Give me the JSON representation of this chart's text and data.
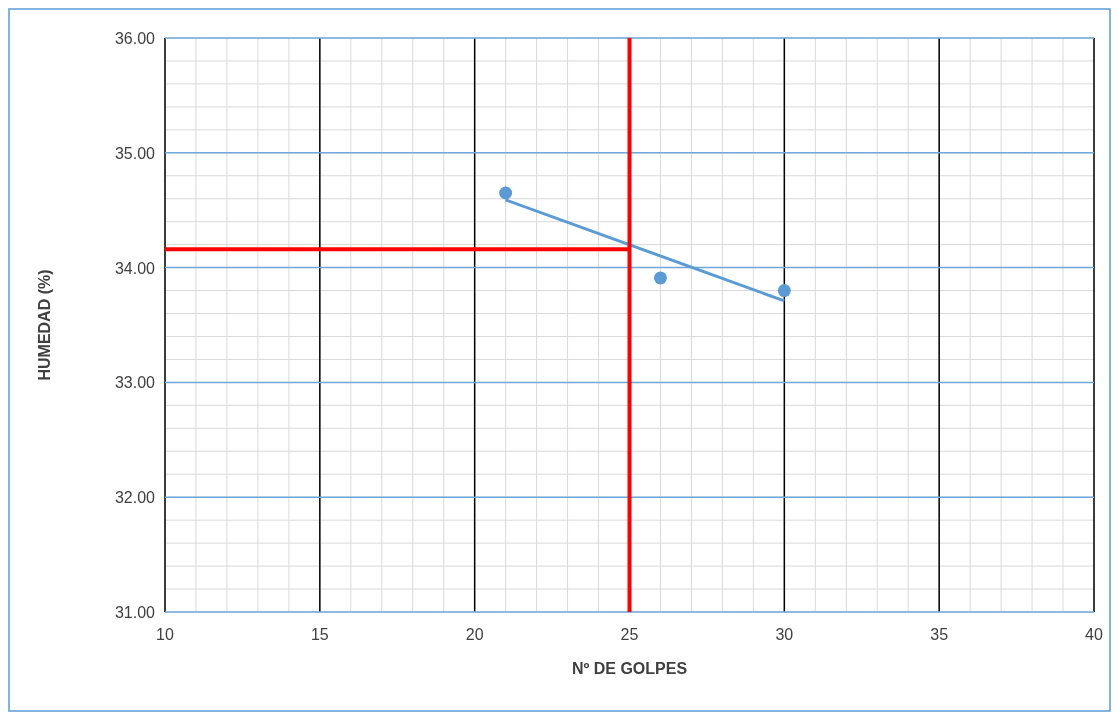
{
  "chart_data": {
    "type": "scatter",
    "xlabel": "Nº DE GOLPES",
    "ylabel": "HUMEDAD (%)",
    "xlim": [
      10,
      40
    ],
    "xticks": [
      10,
      15,
      20,
      25,
      30,
      35,
      40
    ],
    "ylim": [
      31,
      36
    ],
    "yticks": [
      {
        "value": 31,
        "label": "31.00"
      },
      {
        "value": 32,
        "label": "32.00"
      },
      {
        "value": 33,
        "label": "33.00"
      },
      {
        "value": 34,
        "label": "34.00"
      },
      {
        "value": 35,
        "label": "35.00"
      },
      {
        "value": 36,
        "label": "36.00"
      }
    ],
    "grid": true,
    "series": [
      {
        "color": "#5b9bd5",
        "marker": "circle",
        "x": [
          21,
          26,
          30
        ],
        "values": [
          34.65,
          33.91,
          33.8
        ]
      },
      {
        "type": "line",
        "marker": "none",
        "color": "#5b9bd5",
        "x": [
          21,
          30
        ],
        "values": [
          34.59,
          33.71
        ]
      },
      {
        "type": "line",
        "marker": "none",
        "color": "#ff0000",
        "x": [
          10,
          25
        ],
        "values": [
          34.16,
          34.16
        ]
      }
    ],
    "ref_lines": [
      {
        "axis": "x",
        "value": 25,
        "color": "#ff0000"
      }
    ]
  }
}
